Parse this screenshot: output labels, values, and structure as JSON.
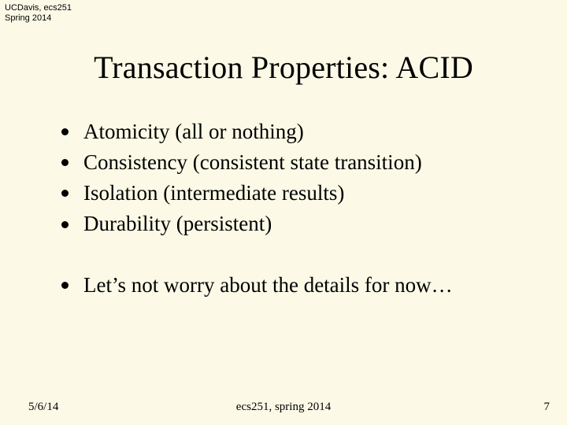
{
  "header": {
    "line1": "UCDavis, ecs251",
    "line2": "Spring 2014"
  },
  "title": "Transaction Properties: ACID",
  "bullets": [
    "Atomicity (all or nothing)",
    "Consistency (consistent state transition)",
    "Isolation (intermediate results)",
    "Durability (persistent)"
  ],
  "bullets2": [
    "Let’s not worry about the details for now…"
  ],
  "footer": {
    "date": "5/6/14",
    "center": "ecs251, spring 2014",
    "page": "7"
  },
  "colors": {
    "background": "#fcfae7",
    "text": "#000000",
    "bullet": "#000000"
  },
  "typography": {
    "title_fontsize": 40,
    "body_fontsize": 27,
    "footer_fontsize": 15,
    "header_fontsize": 11,
    "body_font": "Times New Roman",
    "header_font": "Comic Sans MS"
  }
}
